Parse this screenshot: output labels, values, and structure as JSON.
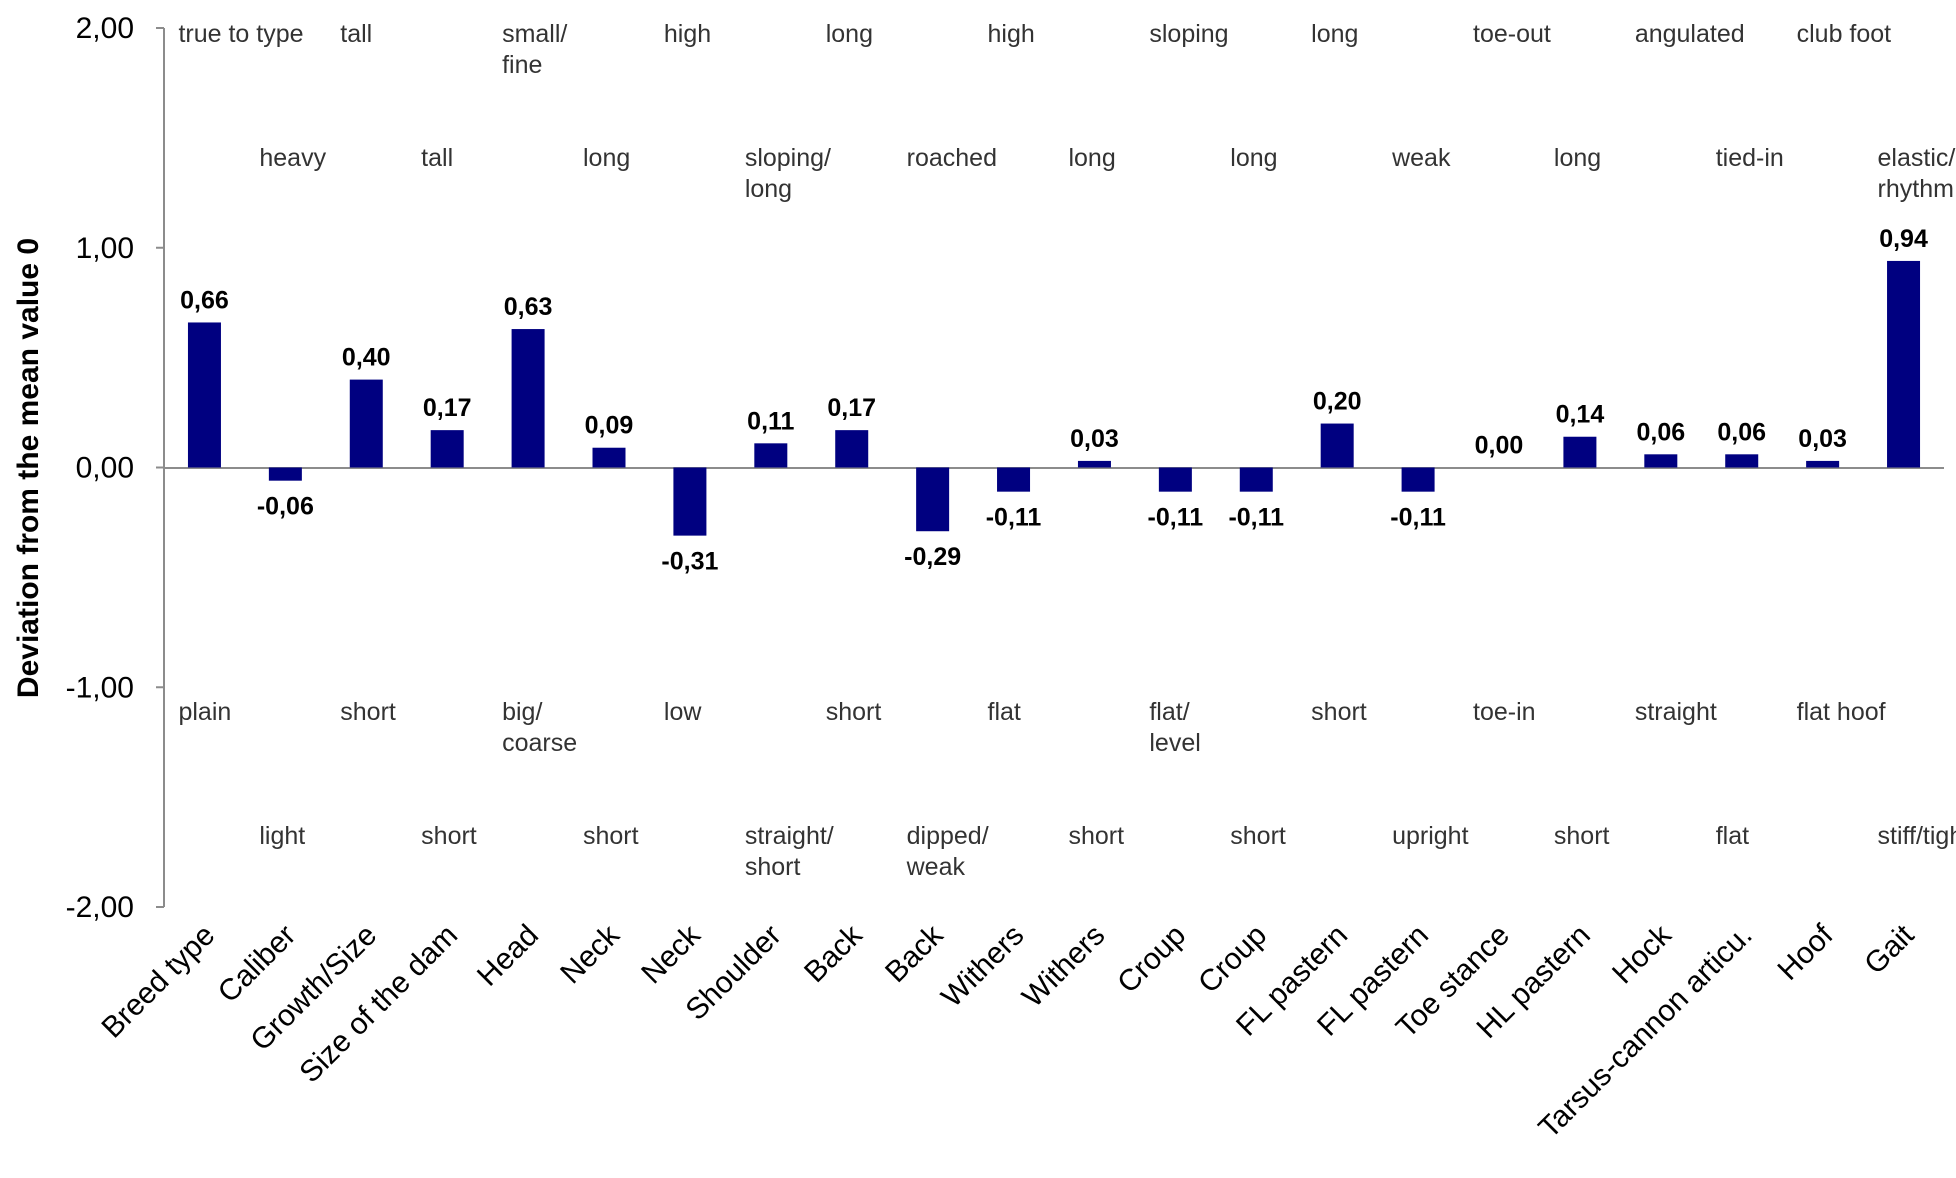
{
  "chart_data": {
    "type": "bar",
    "ylabel": "Deviation from the mean value 0",
    "ylim": [
      -2,
      2
    ],
    "yticks": [
      "2,00",
      "1,00",
      "0,00",
      "-1,00",
      "-2,00"
    ],
    "bar_color": "#000080",
    "categories": [
      "Breed type",
      "Caliber",
      "Growth/Size",
      "Size of the dam",
      "Head",
      "Neck",
      "Neck",
      "Shoulder",
      "Back",
      "Back",
      "Withers",
      "Withers",
      "Croup",
      "Croup",
      "FL pastern",
      "FL pastern",
      "Toe stance",
      "HL pastern",
      "Hock",
      "Tarsus-cannon articu.",
      "Hoof",
      "Gait"
    ],
    "values": [
      0.66,
      -0.06,
      0.4,
      0.17,
      0.63,
      0.09,
      -0.31,
      0.11,
      0.17,
      -0.29,
      -0.11,
      0.03,
      -0.11,
      -0.11,
      0.2,
      -0.11,
      0.0,
      0.14,
      0.06,
      0.06,
      0.03,
      0.94
    ],
    "value_labels": [
      "0,66",
      "-0,06",
      "0,40",
      "0,17",
      "0,63",
      "0,09",
      "-0,31",
      "0,11",
      "0,17",
      "-0,29",
      "-0,11",
      "0,03",
      "-0,11",
      "-0,11",
      "0,20",
      "-0,11",
      "0,00",
      "0,14",
      "0,06",
      "0,06",
      "0,03",
      "0,94"
    ],
    "upper_descriptors": [
      [
        "true to type"
      ],
      [
        "heavy"
      ],
      [
        "tall"
      ],
      [
        "tall"
      ],
      [
        "small/",
        "fine"
      ],
      [
        "long"
      ],
      [
        "high"
      ],
      [
        "sloping/",
        "long"
      ],
      [
        "long"
      ],
      [
        "roached"
      ],
      [
        "high"
      ],
      [
        "long"
      ],
      [
        "sloping"
      ],
      [
        "long"
      ],
      [
        "long"
      ],
      [
        "weak"
      ],
      [
        "toe-out"
      ],
      [
        "long"
      ],
      [
        "angulated"
      ],
      [
        "tied-in"
      ],
      [
        "club foot"
      ],
      [
        "elastic/",
        "rhythm"
      ]
    ],
    "lower_descriptors": [
      [
        "plain"
      ],
      [
        "light"
      ],
      [
        "short"
      ],
      [
        "short"
      ],
      [
        "big/",
        "coarse"
      ],
      [
        "short"
      ],
      [
        "low"
      ],
      [
        "straight/",
        "short"
      ],
      [
        "short"
      ],
      [
        "dipped/",
        "weak"
      ],
      [
        "flat"
      ],
      [
        "short"
      ],
      [
        "flat/",
        "level"
      ],
      [
        "short"
      ],
      [
        "short"
      ],
      [
        "upright"
      ],
      [
        "toe-in"
      ],
      [
        "short"
      ],
      [
        "straight"
      ],
      [
        "flat"
      ],
      [
        "flat hoof"
      ],
      [
        "stiff/tight"
      ]
    ]
  }
}
